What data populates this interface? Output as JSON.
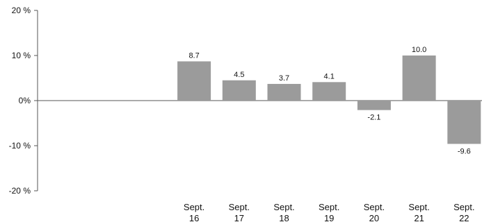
{
  "chart_data": {
    "type": "bar",
    "categories": [
      "",
      "",
      "",
      "Sept. 16",
      "Sept. 17",
      "Sept. 18",
      "Sept. 19",
      "Sept. 20",
      "Sept. 21",
      "Sept. 22"
    ],
    "values": [
      null,
      null,
      null,
      8.7,
      4.5,
      3.7,
      4.1,
      -2.1,
      10.0,
      -9.6
    ],
    "value_labels": [
      "",
      "",
      "",
      "8.7",
      "4.5",
      "3.7",
      "4.1",
      "-2.1",
      "10.0",
      "-9.6"
    ],
    "title": "",
    "xlabel": "",
    "ylabel": "",
    "ylim": [
      -20,
      20
    ],
    "yticks": [
      20,
      10,
      0,
      -10,
      -20
    ],
    "ytick_labels": [
      "20 %",
      "10 %",
      "0%",
      "-10 %",
      "-20 %"
    ],
    "grid": false,
    "legend": "none",
    "colors": {
      "bar": "#9b9b9b",
      "axis": "#555555",
      "text": "#111111"
    }
  }
}
